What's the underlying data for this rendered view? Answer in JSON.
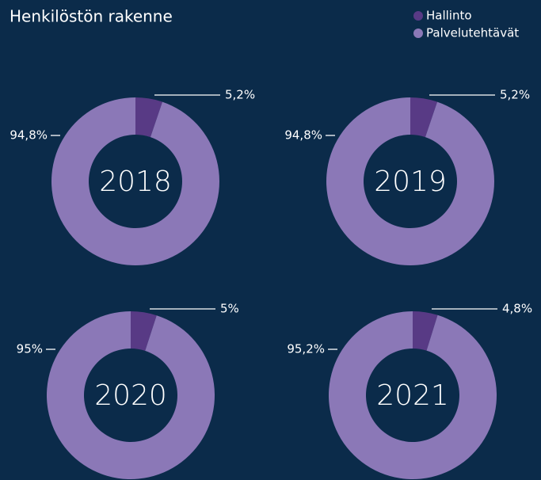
{
  "title": "Henkilöstön rakenne",
  "categories": [
    "Hallinto",
    "Palvelutehtävät"
  ],
  "colors": [
    "#583a85",
    "#8b78b7"
  ],
  "chart_data": [
    {
      "type": "pie",
      "title": "2018",
      "values": [
        5.2,
        94.8
      ],
      "value_labels": [
        "5,2%",
        "94,8%"
      ]
    },
    {
      "type": "pie",
      "title": "2019",
      "values": [
        5.2,
        94.8
      ],
      "value_labels": [
        "5,2%",
        "94,8%"
      ]
    },
    {
      "type": "pie",
      "title": "2020",
      "values": [
        5,
        95
      ],
      "value_labels": [
        "5%",
        "95%"
      ]
    },
    {
      "type": "pie",
      "title": "2021",
      "values": [
        4.8,
        95.2
      ],
      "value_labels": [
        "4,8%",
        "95,2%"
      ]
    }
  ]
}
